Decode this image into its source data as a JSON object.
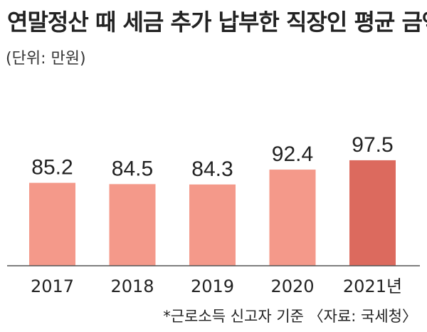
{
  "title": "연말정산 때 세금 추가 납부한 직장인 평균 금액",
  "unit_note": "(단위: 만원)",
  "source_note": "*근로소득 신고자 기준 〈자료: 국세청〉",
  "colors": {
    "bar": "#F4998A",
    "bar_highlight": "#DC6A5E",
    "axis": "#555555",
    "text": "#222222"
  },
  "chart_data": {
    "type": "bar",
    "title": "연말정산 때 세금 추가 납부한 직장인 평균 금액",
    "categories": [
      "2017",
      "2018",
      "2019",
      "2020",
      "2021년"
    ],
    "values": [
      85.2,
      84.5,
      84.3,
      92.4,
      97.5
    ],
    "value_labels": [
      "85.2",
      "84.5",
      "84.3",
      "92.4",
      "97.5"
    ],
    "highlight_index": 4,
    "xlabel": "",
    "ylabel": "",
    "ylim": [
      0,
      110
    ],
    "grid": false,
    "legend": "none"
  }
}
